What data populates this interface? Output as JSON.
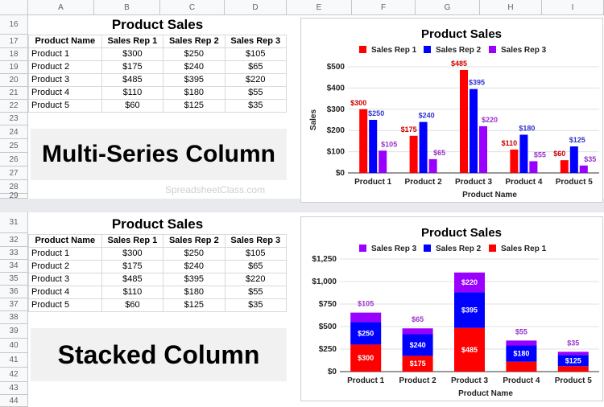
{
  "sheet": {
    "columns": [
      "A",
      "B",
      "C",
      "D",
      "E",
      "F",
      "G",
      "H",
      "I"
    ],
    "rows_top": [
      "16",
      "17",
      "18",
      "19",
      "20",
      "21",
      "22",
      "23",
      "24",
      "25",
      "26",
      "27",
      "28",
      "29"
    ],
    "rows_bottom": [
      "31",
      "32",
      "33",
      "34",
      "35",
      "36",
      "37",
      "38",
      "39",
      "40",
      "41",
      "42",
      "43",
      "44"
    ],
    "watermark": "SpreadsheetClass.com"
  },
  "table": {
    "title": "Product Sales",
    "headers": [
      "Product Name",
      "Sales Rep 1",
      "Sales Rep 2",
      "Sales Rep 3"
    ],
    "rows": [
      [
        "Product 1",
        "$300",
        "$250",
        "$105"
      ],
      [
        "Product 2",
        "$175",
        "$240",
        "$65"
      ],
      [
        "Product 3",
        "$485",
        "$395",
        "$220"
      ],
      [
        "Product 4",
        "$110",
        "$180",
        "$55"
      ],
      [
        "Product 5",
        "$60",
        "$125",
        "$35"
      ]
    ]
  },
  "labels": {
    "top": "Multi-Series Column",
    "bottom": "Stacked Column"
  },
  "colors": {
    "rep1": "#ff0000",
    "rep2": "#0000ff",
    "rep3": "#9900ff",
    "label1": "#cc0000",
    "label2": "#3333cc",
    "label3": "#9933cc"
  },
  "chart_data": [
    {
      "type": "bar",
      "title": "Product Sales",
      "xlabel": "Product Name",
      "ylabel": "Sales",
      "categories": [
        "Product 1",
        "Product 2",
        "Product 3",
        "Product 4",
        "Product 5"
      ],
      "series": [
        {
          "name": "Sales Rep 1",
          "values": [
            300,
            175,
            485,
            110,
            60
          ]
        },
        {
          "name": "Sales Rep 2",
          "values": [
            250,
            240,
            395,
            180,
            125
          ]
        },
        {
          "name": "Sales Rep 3",
          "values": [
            105,
            65,
            220,
            55,
            35
          ]
        }
      ],
      "yticks": [
        "$0",
        "$100",
        "$200",
        "$300",
        "$400",
        "$500"
      ],
      "ylim": [
        0,
        500
      ],
      "stacked": false,
      "legend": "top",
      "legend_order": [
        0,
        1,
        2
      ]
    },
    {
      "type": "bar",
      "title": "Product Sales",
      "xlabel": "Product Name",
      "ylabel": "",
      "categories": [
        "Product 1",
        "Product 2",
        "Product 3",
        "Product 4",
        "Product 5"
      ],
      "series": [
        {
          "name": "Sales Rep 1",
          "values": [
            300,
            175,
            485,
            110,
            60
          ]
        },
        {
          "name": "Sales Rep 2",
          "values": [
            250,
            240,
            395,
            180,
            125
          ]
        },
        {
          "name": "Sales Rep 3",
          "values": [
            105,
            65,
            220,
            55,
            35
          ]
        }
      ],
      "yticks": [
        "$0",
        "$250",
        "$500",
        "$750",
        "$1,000",
        "$1,250"
      ],
      "ylim": [
        0,
        1250
      ],
      "stacked": true,
      "legend": "top",
      "legend_order": [
        2,
        1,
        0
      ]
    }
  ]
}
